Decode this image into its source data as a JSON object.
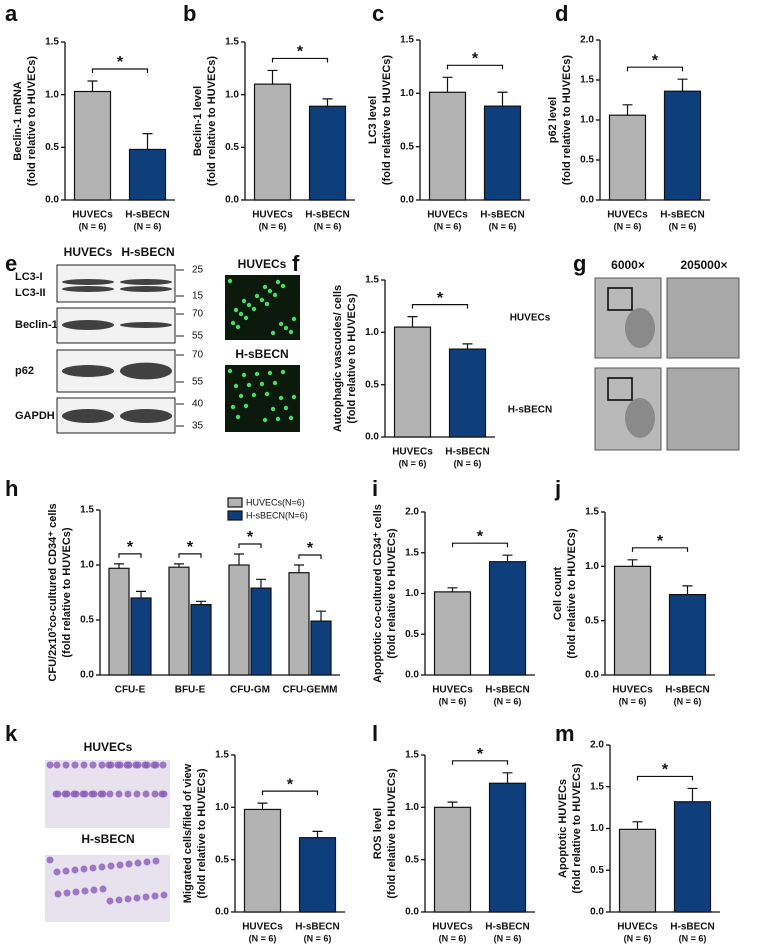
{
  "chart_data": [
    {
      "type": "bar",
      "panel": "a",
      "ylabel": [
        "Beclin-1 mRNA",
        "(fold relative to HUVECs)"
      ],
      "categories": [
        "HUVECs",
        "H-sBECN"
      ],
      "category_notes": [
        "(N = 6)",
        "(N = 6)"
      ],
      "values": [
        1.03,
        0.48
      ],
      "errors": [
        0.1,
        0.15
      ],
      "colors": [
        "#b3b3b3",
        "#0f3e7c"
      ],
      "ylim": [
        0,
        1.5
      ],
      "yticks": [
        {
          "value": 0,
          "label": "0.0"
        },
        0.5,
        {
          "value": 1,
          "label": "1.0"
        },
        1.5
      ],
      "significance": "*"
    },
    {
      "type": "bar",
      "panel": "b",
      "ylabel": [
        "Beclin-1 level",
        "(fold relative to HUVECs)"
      ],
      "categories": [
        "HUVECs",
        "H-sBECN"
      ],
      "category_notes": [
        "(N = 6)",
        "(N = 6)"
      ],
      "values": [
        1.1,
        0.89
      ],
      "errors": [
        0.13,
        0.07
      ],
      "colors": [
        "#b3b3b3",
        "#0f3e7c"
      ],
      "ylim": [
        0,
        1.5
      ],
      "yticks": [
        {
          "value": 0,
          "label": "0.0"
        },
        0.5,
        {
          "value": 1,
          "label": "1.0"
        },
        1.5
      ],
      "significance": "*"
    },
    {
      "type": "bar",
      "panel": "c",
      "ylabel": [
        "LC3 level",
        "(fold relative to HUVECs)"
      ],
      "categories": [
        "HUVECs",
        "H-sBECN"
      ],
      "category_notes": [
        "(N = 6)",
        "(N = 6)"
      ],
      "values": [
        1.01,
        0.88
      ],
      "errors": [
        0.14,
        0.13
      ],
      "colors": [
        "#b3b3b3",
        "#0f3e7c"
      ],
      "ylim": [
        0,
        1.5
      ],
      "yticks": [
        {
          "value": 0,
          "label": "0.0"
        },
        0.5,
        {
          "value": 1,
          "label": "1.0"
        },
        1.5
      ],
      "significance": "*"
    },
    {
      "type": "bar",
      "panel": "d",
      "ylabel": [
        "p62 level",
        "(fold relative to HUVECs)"
      ],
      "categories": [
        "HUVECs",
        "H-sBECN"
      ],
      "category_notes": [
        "(N = 6)",
        "(N = 6)"
      ],
      "values": [
        1.06,
        1.36
      ],
      "errors": [
        0.13,
        0.15
      ],
      "colors": [
        "#b3b3b3",
        "#0f3e7c"
      ],
      "ylim": [
        0,
        2
      ],
      "yticks": [
        {
          "value": 0,
          "label": "0.0"
        },
        0.5,
        {
          "value": 1,
          "label": "1.0"
        },
        1.5,
        {
          "value": 2,
          "label": "2.0"
        }
      ],
      "significance": "*"
    },
    {
      "type": "bar",
      "panel": "f",
      "ylabel": [
        "Autophagic vascuoles/ cells",
        "(fold relative to HUVECs)"
      ],
      "categories": [
        "HUVECs",
        "H-sBECN"
      ],
      "category_notes": [
        "(N = 6)",
        "(N = 6)"
      ],
      "values": [
        1.05,
        0.84
      ],
      "errors": [
        0.1,
        0.05
      ],
      "colors": [
        "#b3b3b3",
        "#0f3e7c"
      ],
      "ylim": [
        0,
        1.5
      ],
      "yticks": [
        {
          "value": 0,
          "label": "0.0"
        },
        0.5,
        {
          "value": 1,
          "label": "1.0"
        },
        1.5
      ],
      "significance": "*"
    },
    {
      "type": "grouped-bar",
      "panel": "h",
      "ylabel": [
        "CFU/2x10³co-cultured CD34⁺ cells",
        "(fold relative to HUVECs)"
      ],
      "categories": [
        "CFU-E",
        "BFU-E",
        "CFU-GM",
        "CFU-GEMM"
      ],
      "series": [
        {
          "name": "HUVECs(N=6)",
          "color": "#b3b3b3",
          "values": [
            0.97,
            0.98,
            1.0,
            0.93
          ],
          "errors": [
            0.04,
            0.03,
            0.1,
            0.07
          ]
        },
        {
          "name": "H-sBECN(N=6)",
          "color": "#0f3e7c",
          "values": [
            0.7,
            0.64,
            0.79,
            0.49
          ],
          "errors": [
            0.06,
            0.03,
            0.08,
            0.09
          ]
        }
      ],
      "ylim": [
        0,
        1.5
      ],
      "yticks": [
        {
          "value": 0,
          "label": "0.0"
        },
        0.5,
        {
          "value": 1,
          "label": "1.0"
        },
        1.5
      ],
      "significance": [
        "*",
        "*",
        "*",
        "*"
      ]
    },
    {
      "type": "bar",
      "panel": "i",
      "ylabel": [
        "Apoptotic co-cultured CD34⁺ cells",
        "(fold relative to HUVECs)"
      ],
      "categories": [
        "HUVECs",
        "H-sBECN"
      ],
      "category_notes": [
        "(N = 6)",
        "(N = 6)"
      ],
      "values": [
        1.02,
        1.39
      ],
      "errors": [
        0.05,
        0.08
      ],
      "colors": [
        "#b3b3b3",
        "#0f3e7c"
      ],
      "ylim": [
        0,
        2
      ],
      "yticks": [
        {
          "value": 0,
          "label": "0.0"
        },
        0.5,
        {
          "value": 1,
          "label": "1.0"
        },
        1.5,
        {
          "value": 2,
          "label": "2.0"
        }
      ],
      "significance": "*"
    },
    {
      "type": "bar",
      "panel": "j",
      "ylabel": [
        "Cell count",
        "(fold relative to HUVECs)"
      ],
      "categories": [
        "HUVECs",
        "H-sBECN"
      ],
      "category_notes": [
        "(N = 6)",
        "(N = 6)"
      ],
      "values": [
        1.0,
        0.74
      ],
      "errors": [
        0.06,
        0.08
      ],
      "colors": [
        "#b3b3b3",
        "#0f3e7c"
      ],
      "ylim": [
        0,
        1.5
      ],
      "yticks": [
        {
          "value": 0,
          "label": "0.0"
        },
        0.5,
        {
          "value": 1,
          "label": "1.0"
        },
        1.5
      ],
      "significance": "*"
    },
    {
      "type": "bar",
      "panel": "k",
      "ylabel": [
        "Migrated cells/filed of view",
        "(fold relative to HUVECs)"
      ],
      "categories": [
        "HUVECs",
        "H-sBECN"
      ],
      "category_notes": [
        "(N = 6)",
        "(N = 6)"
      ],
      "values": [
        0.98,
        0.71
      ],
      "errors": [
        0.06,
        0.06
      ],
      "colors": [
        "#b3b3b3",
        "#0f3e7c"
      ],
      "ylim": [
        0,
        1.5
      ],
      "yticks": [
        {
          "value": 0,
          "label": "0.0"
        },
        0.5,
        {
          "value": 1,
          "label": "1.0"
        },
        1.5
      ],
      "significance": "*"
    },
    {
      "type": "bar",
      "panel": "l",
      "ylabel": [
        "ROS level",
        "(fold relative to HUVECs)"
      ],
      "categories": [
        "HUVECs",
        "H-sBECN"
      ],
      "category_notes": [
        "(N = 6)",
        "(N = 6)"
      ],
      "values": [
        1.0,
        1.23
      ],
      "errors": [
        0.05,
        0.1
      ],
      "colors": [
        "#b3b3b3",
        "#0f3e7c"
      ],
      "ylim": [
        0,
        1.5
      ],
      "yticks": [
        {
          "value": 0,
          "label": "0.0"
        },
        0.5,
        {
          "value": 1,
          "label": "1.0"
        },
        1.5
      ],
      "significance": "*"
    },
    {
      "type": "bar",
      "panel": "m",
      "ylabel": [
        "Apoptotic HUVECs",
        "(fold relative to HUVECs)"
      ],
      "categories": [
        "HUVECs",
        "H-sBECN"
      ],
      "category_notes": [
        "(N = 6)",
        "(N = 6)"
      ],
      "values": [
        0.99,
        1.32
      ],
      "errors": [
        0.09,
        0.16
      ],
      "colors": [
        "#b3b3b3",
        "#0f3e7c"
      ],
      "ylim": [
        0,
        2
      ],
      "yticks": [
        {
          "value": 0,
          "label": "0.0"
        },
        0.5,
        {
          "value": 1,
          "label": "1.0"
        },
        1.5,
        {
          "value": 2,
          "label": "2.0"
        }
      ],
      "significance": "*"
    }
  ],
  "images": {
    "e": {
      "panel": "e",
      "columns": [
        "HUVECs",
        "H-sBECN"
      ],
      "rows": [
        "LC3-I",
        "LC3-II",
        "Beclin-1",
        "p62",
        "GAPDH"
      ],
      "markers": [
        "25",
        "15",
        "70",
        "55",
        "70",
        "55",
        "40",
        "35"
      ]
    },
    "f": {
      "rows": [
        "HUVECs",
        "H-sBECN"
      ]
    },
    "g": {
      "panel": "g",
      "columns": [
        "6000×",
        "205000×"
      ],
      "rows": [
        "HUVECs",
        "H-sBECN"
      ]
    },
    "k": {
      "rows": [
        "HUVECs",
        "H-sBECN"
      ]
    }
  }
}
